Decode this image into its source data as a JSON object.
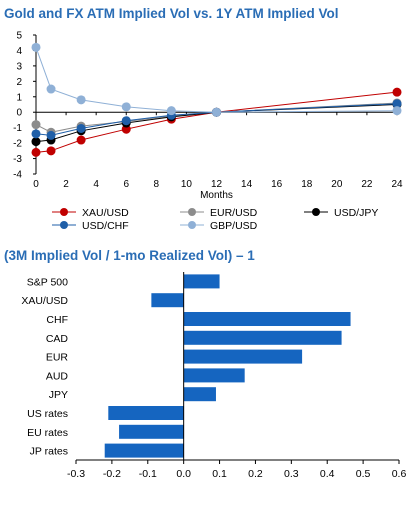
{
  "chart_data": [
    {
      "type": "line",
      "title": "Gold and FX ATM Implied Vol vs. 1Y ATM Implied Vol",
      "xlabel": "Months",
      "ylabel": "",
      "xlim": [
        0,
        24
      ],
      "ylim": [
        -4,
        5
      ],
      "x_ticks": [
        0,
        2,
        4,
        6,
        8,
        10,
        12,
        14,
        16,
        18,
        20,
        22,
        24
      ],
      "y_ticks": [
        -4,
        -3,
        -2,
        -1,
        0,
        1,
        2,
        3,
        4,
        5
      ],
      "grid": false,
      "legend": "bottom",
      "series": [
        {
          "name": "XAU/USD",
          "color": "#c00000",
          "points": [
            [
              0,
              -2.6
            ],
            [
              1,
              -2.5
            ],
            [
              3,
              -1.8
            ],
            [
              6,
              -1.1
            ],
            [
              9,
              -0.45
            ],
            [
              12,
              0
            ],
            [
              24,
              1.3
            ]
          ]
        },
        {
          "name": "EUR/USD",
          "color": "#8c8c8c",
          "points": [
            [
              0,
              -0.8
            ],
            [
              1,
              -1.3
            ],
            [
              3,
              -0.9
            ],
            [
              6,
              -0.6
            ],
            [
              9,
              -0.25
            ],
            [
              12,
              0
            ],
            [
              24,
              0.6
            ]
          ]
        },
        {
          "name": "USD/JPY",
          "color": "#000000",
          "points": [
            [
              0,
              -1.9
            ],
            [
              1,
              -1.8
            ],
            [
              3,
              -1.2
            ],
            [
              6,
              -0.7
            ],
            [
              9,
              -0.3
            ],
            [
              12,
              0
            ],
            [
              24,
              0.5
            ]
          ]
        },
        {
          "name": "USD/CHF",
          "color": "#1f5fa8",
          "points": [
            [
              0,
              -1.4
            ],
            [
              1,
              -1.5
            ],
            [
              3,
              -1.05
            ],
            [
              6,
              -0.55
            ],
            [
              9,
              -0.2
            ],
            [
              12,
              0
            ],
            [
              24,
              0.55
            ]
          ]
        },
        {
          "name": "GBP/USD",
          "color": "#8fb0d6",
          "points": [
            [
              0,
              4.2
            ],
            [
              1,
              1.5
            ],
            [
              3,
              0.8
            ],
            [
              6,
              0.35
            ],
            [
              9,
              0.1
            ],
            [
              12,
              0
            ],
            [
              24,
              0.1
            ]
          ]
        }
      ]
    },
    {
      "type": "bar",
      "orientation": "horizontal",
      "title": "(3M Implied Vol / 1-mo Realized Vol) – 1",
      "categories": [
        "S&P 500",
        "XAU/USD",
        "CHF",
        "CAD",
        "EUR",
        "AUD",
        "JPY",
        "US rates",
        "EU rates",
        "JP rates"
      ],
      "values": [
        0.1,
        -0.09,
        0.465,
        0.44,
        0.33,
        0.17,
        0.09,
        -0.21,
        -0.18,
        -0.22
      ],
      "xlim": [
        -0.3,
        0.6
      ],
      "x_ticks": [
        -0.3,
        -0.2,
        -0.1,
        0.0,
        0.1,
        0.2,
        0.3,
        0.4,
        0.5,
        0.6
      ],
      "x_tick_labels": [
        "-0.3",
        "-0.2",
        "-0.1",
        "0.0",
        "0.1",
        "0.2",
        "0.3",
        "0.4",
        "0.5",
        "0.6"
      ],
      "grid": false,
      "color": "#1565c0"
    }
  ]
}
